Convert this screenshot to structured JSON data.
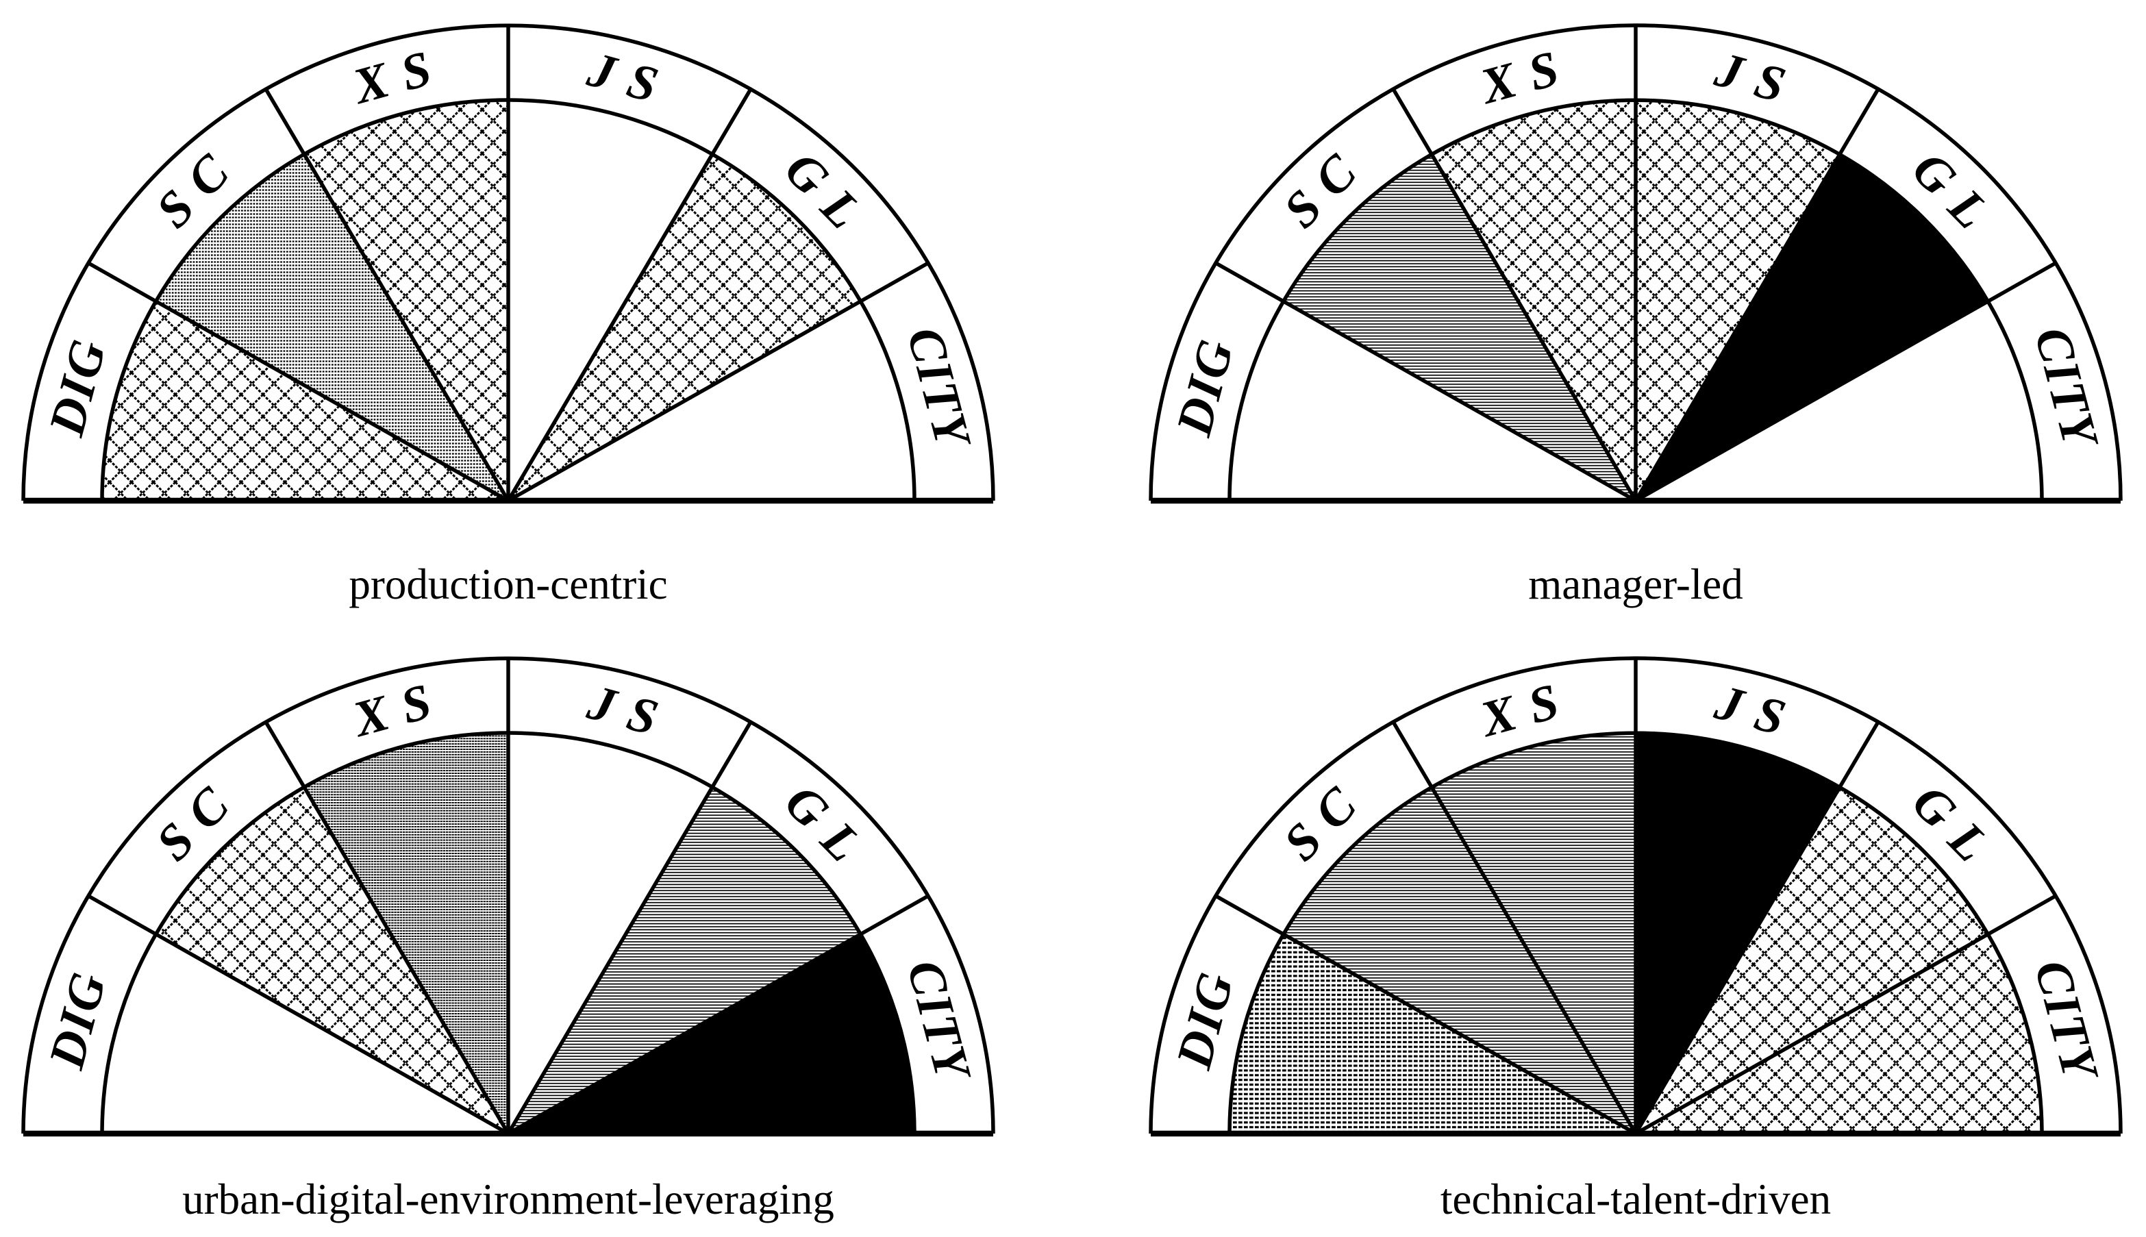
{
  "figure": {
    "background": "#ffffff",
    "ink": "#000000"
  },
  "sector_labels": [
    "DIG",
    "S C",
    "X S",
    "J S",
    "G L",
    "CITY"
  ],
  "pattern_defs": {
    "crosshatch": {
      "kind": "diag-cross",
      "tile": 32,
      "stroke": 3.0,
      "dash": [
        4,
        2
      ]
    },
    "dot-rows": {
      "kind": "hdash",
      "dash": 2.7,
      "gap": 1.7,
      "pitch": 5.0,
      "stroke": 2.3
    },
    "dense-dash-rows": {
      "kind": "hdash",
      "dash": 3.4,
      "gap": 0.8,
      "pitch": 3.9,
      "stroke": 1.9
    },
    "brick-rows": {
      "kind": "hdash",
      "dash": 5.7,
      "gap": 2.3,
      "pitch": 6.9,
      "stroke": 3.2
    },
    "hlines": {
      "kind": "hline",
      "pitch": 4.4,
      "stroke": 1.7
    },
    "black": {
      "kind": "solid"
    },
    "none": {
      "kind": "none"
    }
  },
  "chart_data": [
    {
      "type": "half-rose",
      "title": "production-centric",
      "categories": [
        "DIG",
        "S C",
        "X S",
        "J S",
        "G L",
        "CITY"
      ],
      "fills": [
        "crosshatch",
        "dot-rows",
        "crosshatch",
        "none",
        "crosshatch",
        "none"
      ],
      "values": [
        1,
        1,
        1,
        0,
        1,
        0
      ],
      "angle_span_deg": 180,
      "sector_angle_deg": 30
    },
    {
      "type": "half-rose",
      "title": "manager-led",
      "categories": [
        "DIG",
        "S C",
        "X S",
        "J S",
        "G L",
        "CITY"
      ],
      "fills": [
        "none",
        "hlines",
        "crosshatch",
        "crosshatch",
        "black",
        "none"
      ],
      "values": [
        0,
        1,
        1,
        1,
        1,
        0
      ],
      "angle_span_deg": 180,
      "sector_angle_deg": 30
    },
    {
      "type": "half-rose",
      "title": "urban-digital-environment-leveraging",
      "categories": [
        "DIG",
        "S C",
        "X S",
        "J S",
        "G L",
        "CITY"
      ],
      "fills": [
        "none",
        "crosshatch",
        "dense-dash-rows",
        "none",
        "hlines",
        "black"
      ],
      "values": [
        0,
        1,
        1,
        0,
        1,
        1
      ],
      "angle_span_deg": 180,
      "sector_angle_deg": 30
    },
    {
      "type": "half-rose",
      "title": "technical-talent-driven",
      "categories": [
        "DIG",
        "S C",
        "X S",
        "J S",
        "G L",
        "CITY"
      ],
      "fills": [
        "brick-rows",
        "hlines",
        "hlines",
        "black",
        "crosshatch",
        "crosshatch"
      ],
      "values": [
        1,
        1,
        1,
        1,
        1,
        1
      ],
      "angle_span_deg": 180,
      "sector_angle_deg": 30
    }
  ]
}
